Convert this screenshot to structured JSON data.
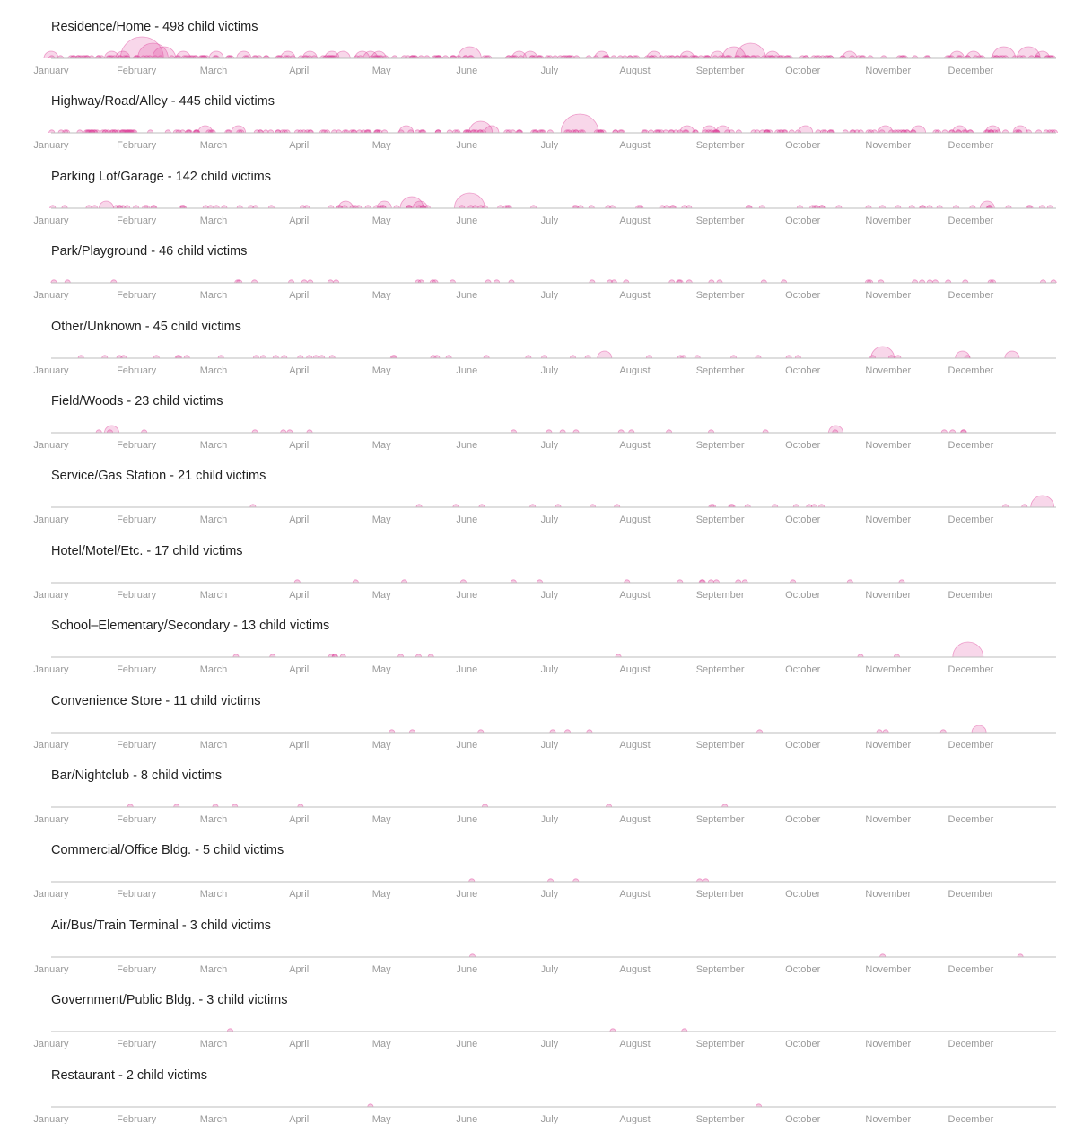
{
  "chart_data": {
    "type": "scatter",
    "months": [
      "January",
      "February",
      "March",
      "April",
      "May",
      "June",
      "July",
      "August",
      "September",
      "October",
      "November",
      "December"
    ],
    "color": "#e0479e",
    "rows": [
      {
        "title": "Residence/Home - 498 child victims",
        "dense": {
          "count": 260,
          "span": [
            0,
            365
          ],
          "size_max": 1,
          "seed": 11
        },
        "bubbles": [
          {
            "day": 0,
            "size": 2
          },
          {
            "day": 22,
            "size": 2
          },
          {
            "day": 26,
            "size": 2
          },
          {
            "day": 33,
            "size": 6
          },
          {
            "day": 37,
            "size": 4
          },
          {
            "day": 41,
            "size": 3
          },
          {
            "day": 48,
            "size": 2
          },
          {
            "day": 60,
            "size": 2
          },
          {
            "day": 70,
            "size": 2
          },
          {
            "day": 86,
            "size": 2
          },
          {
            "day": 94,
            "size": 2
          },
          {
            "day": 102,
            "size": 2
          },
          {
            "day": 106,
            "size": 2
          },
          {
            "day": 113,
            "size": 2
          },
          {
            "day": 116,
            "size": 2
          },
          {
            "day": 119,
            "size": 2
          },
          {
            "day": 152,
            "size": 3
          },
          {
            "day": 170,
            "size": 2
          },
          {
            "day": 174,
            "size": 2
          },
          {
            "day": 200,
            "size": 2
          },
          {
            "day": 219,
            "size": 2
          },
          {
            "day": 231,
            "size": 2
          },
          {
            "day": 242,
            "size": 2
          },
          {
            "day": 248,
            "size": 3
          },
          {
            "day": 254,
            "size": 4
          },
          {
            "day": 262,
            "size": 2
          },
          {
            "day": 290,
            "size": 2
          },
          {
            "day": 329,
            "size": 2
          },
          {
            "day": 335,
            "size": 2
          },
          {
            "day": 346,
            "size": 3
          },
          {
            "day": 355,
            "size": 3
          },
          {
            "day": 360,
            "size": 2
          }
        ]
      },
      {
        "title": "Highway/Road/Alley - 445 child victims",
        "dense": {
          "count": 240,
          "span": [
            0,
            365
          ],
          "size_max": 1,
          "seed": 23
        },
        "bubbles": [
          {
            "day": 56,
            "size": 2
          },
          {
            "day": 68,
            "size": 2
          },
          {
            "day": 129,
            "size": 2
          },
          {
            "day": 156,
            "size": 3
          },
          {
            "day": 160,
            "size": 2
          },
          {
            "day": 192,
            "size": 5
          },
          {
            "day": 231,
            "size": 2
          },
          {
            "day": 239,
            "size": 2
          },
          {
            "day": 244,
            "size": 2
          },
          {
            "day": 274,
            "size": 2
          },
          {
            "day": 303,
            "size": 2
          },
          {
            "day": 315,
            "size": 2
          },
          {
            "day": 330,
            "size": 2
          },
          {
            "day": 342,
            "size": 2
          },
          {
            "day": 352,
            "size": 2
          }
        ]
      },
      {
        "title": "Parking Lot/Garage - 142 child victims",
        "dense": {
          "count": 100,
          "span": [
            0,
            365
          ],
          "size_max": 1,
          "seed": 37
        },
        "bubbles": [
          {
            "day": 20,
            "size": 2
          },
          {
            "day": 107,
            "size": 2
          },
          {
            "day": 121,
            "size": 2
          },
          {
            "day": 131,
            "size": 3
          },
          {
            "day": 134,
            "size": 2
          },
          {
            "day": 152,
            "size": 4
          },
          {
            "day": 340,
            "size": 2
          }
        ]
      },
      {
        "title": "Park/Playground - 46 child victims",
        "dense": {
          "count": 44,
          "span": [
            0,
            365
          ],
          "size_max": 1,
          "seed": 41
        },
        "bubbles": []
      },
      {
        "title": "Other/Unknown - 45 child victims",
        "dense": {
          "count": 40,
          "span": [
            8,
            360
          ],
          "size_max": 1,
          "seed": 53
        },
        "bubbles": [
          {
            "day": 201,
            "size": 2
          },
          {
            "day": 302,
            "size": 3
          },
          {
            "day": 331,
            "size": 2
          },
          {
            "day": 349,
            "size": 2
          }
        ]
      },
      {
        "title": "Field/Woods - 23 child victims",
        "dense": {
          "count": 21,
          "span": [
            4,
            350
          ],
          "size_max": 1,
          "seed": 61
        },
        "bubbles": [
          {
            "day": 22,
            "size": 2
          },
          {
            "day": 285,
            "size": 2
          }
        ]
      },
      {
        "title": "Service/Gas Station - 21 child victims",
        "dense": {
          "count": 20,
          "span": [
            70,
            362
          ],
          "size_max": 1,
          "seed": 71
        },
        "bubbles": [
          {
            "day": 360,
            "size": 3
          }
        ]
      },
      {
        "title": "Hotel/Motel/Etc. - 17 child victims",
        "dense": {
          "count": 17,
          "span": [
            58,
            320
          ],
          "size_max": 1,
          "seed": 83
        },
        "bubbles": []
      },
      {
        "title": "School–Elementary/Secondary - 13 child victims",
        "dense": {
          "count": 12,
          "span": [
            58,
            350
          ],
          "size_max": 1,
          "seed": 97
        },
        "bubbles": [
          {
            "day": 333,
            "size": 4
          }
        ]
      },
      {
        "title": "Convenience Store - 11 child victims",
        "dense": {
          "count": 10,
          "span": [
            90,
            330
          ],
          "size_max": 1,
          "seed": 101
        },
        "bubbles": [
          {
            "day": 337,
            "size": 2
          }
        ]
      },
      {
        "title": "Bar/Nightclub - 8 child victims",
        "dense": {
          "count": 8,
          "span": [
            15,
            285
          ],
          "size_max": 1,
          "seed": 113
        },
        "bubbles": []
      },
      {
        "title": "Commercial/Office Bldg. - 5 child victims",
        "dense": {
          "count": 5,
          "span": [
            150,
            260
          ],
          "size_max": 1,
          "seed": 127
        },
        "bubbles": []
      },
      {
        "title": "Air/Bus/Train Terminal - 3 child victims",
        "dense": {
          "count": 0,
          "span": [
            0,
            0
          ],
          "size_max": 1,
          "seed": 131
        },
        "bubbles": [
          {
            "day": 153,
            "size": 1
          },
          {
            "day": 302,
            "size": 1
          },
          {
            "day": 352,
            "size": 1
          }
        ]
      },
      {
        "title": "Government/Public Bldg. - 3 child victims",
        "dense": {
          "count": 0,
          "span": [
            0,
            0
          ],
          "size_max": 1,
          "seed": 139
        },
        "bubbles": [
          {
            "day": 65,
            "size": 1
          },
          {
            "day": 204,
            "size": 1
          },
          {
            "day": 230,
            "size": 1
          }
        ]
      },
      {
        "title": "Restaurant - 2 child victims",
        "dense": {
          "count": 0,
          "span": [
            0,
            0
          ],
          "size_max": 1,
          "seed": 149
        },
        "bubbles": [
          {
            "day": 116,
            "size": 1
          },
          {
            "day": 257,
            "size": 1
          }
        ]
      }
    ]
  }
}
